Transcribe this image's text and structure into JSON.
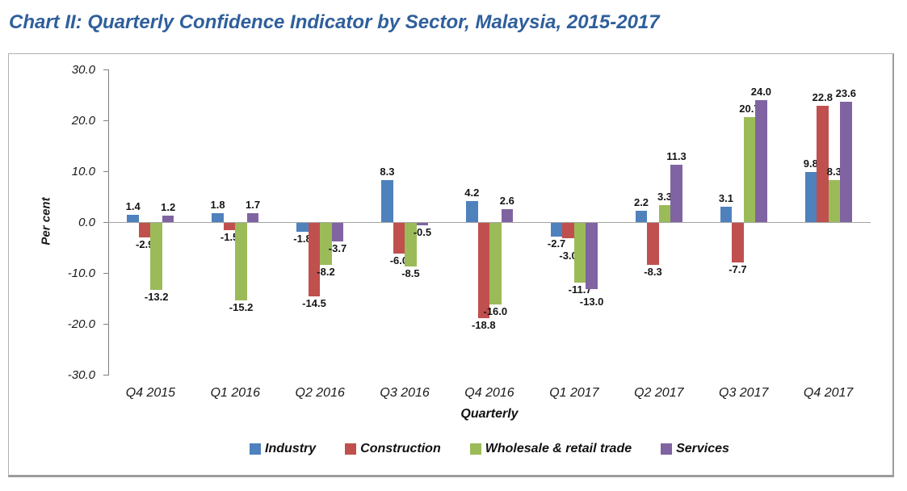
{
  "title": "Chart II: Quarterly Confidence Indicator by Sector, Malaysia, 2015-2017",
  "chart_data": {
    "type": "bar",
    "title": "Chart II: Quarterly Confidence Indicator by Sector, Malaysia, 2015-2017",
    "xlabel": "Quarterly",
    "ylabel": "Per cent",
    "ylim": [
      -30,
      30
    ],
    "ytick_labels": [
      "30.0",
      "20.0",
      "10.0",
      "0.0",
      "-10.0",
      "-20.0",
      "-30.0"
    ],
    "grid": false,
    "legend_position": "bottom",
    "categories": [
      "Q4 2015",
      "Q1 2016",
      "Q2 2016",
      "Q3 2016",
      "Q4 2016",
      "Q1 2017",
      "Q2 2017",
      "Q3 2017",
      "Q4 2017"
    ],
    "series": [
      {
        "name": "Industry",
        "color": "#4F81BD",
        "values": [
          1.4,
          1.8,
          -1.8,
          8.3,
          4.2,
          -2.7,
          2.2,
          3.1,
          9.8
        ]
      },
      {
        "name": "Construction",
        "color": "#C0504D",
        "values": [
          -2.9,
          -1.5,
          -14.5,
          -6.0,
          -18.8,
          -3.0,
          -8.3,
          -7.7,
          22.8
        ]
      },
      {
        "name": "Wholesale & retail trade",
        "color": "#9BBB59",
        "values": [
          -13.2,
          -15.2,
          -8.2,
          -8.5,
          -16.0,
          -11.7,
          3.3,
          20.7,
          8.3
        ]
      },
      {
        "name": "Services",
        "color": "#8064A2",
        "values": [
          1.2,
          1.7,
          -3.7,
          -0.5,
          2.6,
          -13.0,
          11.3,
          24.0,
          23.6
        ]
      }
    ]
  }
}
